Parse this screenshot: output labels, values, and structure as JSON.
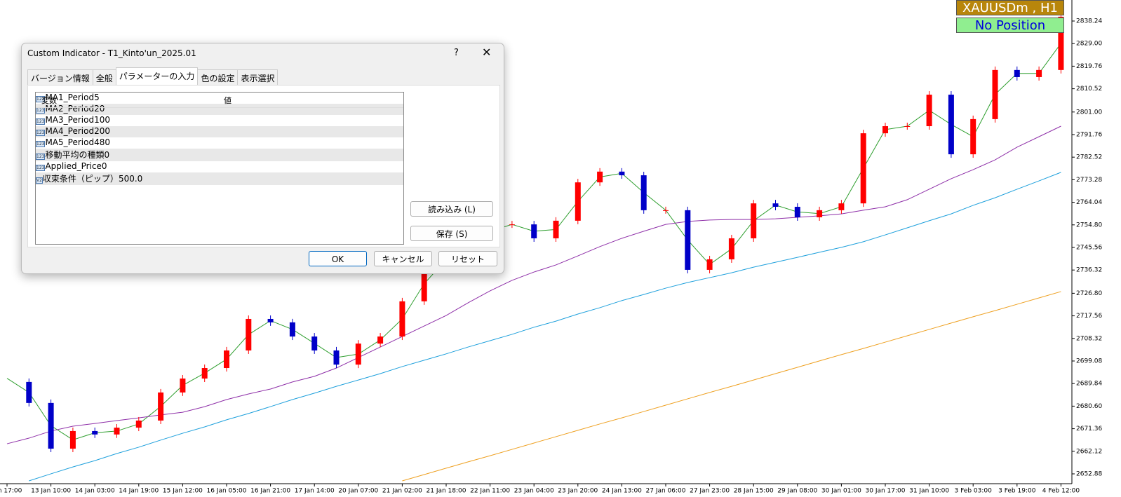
{
  "chart_data": {
    "type": "candlestick",
    "categories": [
      "Jan 17:00",
      null,
      "13 Jan 10:00",
      null,
      "14 Jan 03:00",
      null,
      "14 Jan 19:00",
      null,
      "15 Jan 12:00",
      null,
      "16 Jan 05:00",
      null,
      "16 Jan 21:00",
      null,
      "17 Jan 14:00",
      null,
      "20 Jan 07:00",
      null,
      "21 Jan 02:00",
      null,
      "21 Jan 18:00",
      null,
      "22 Jan 11:00",
      null,
      "23 Jan 04:00",
      null,
      "23 Jan 20:00",
      null,
      "24 Jan 13:00",
      null,
      "27 Jan 06:00",
      null,
      "27 Jan 23:00",
      null,
      "28 Jan 15:00",
      null,
      "29 Jan 08:00",
      null,
      "30 Jan 01:00",
      null,
      "30 Jan 17:00",
      null,
      "31 Jan 10:00",
      null,
      "3 Feb 03:00",
      null,
      "3 Feb 19:00",
      null,
      "4 Feb 12:00"
    ],
    "series": [
      {
        "kind": "candle",
        "up_color": "#ff0000",
        "down_color": "#0000c8",
        "values": [
          2690.5,
          2681.9,
          2663.2,
          2670.4,
          2669.0,
          2671.8,
          2674.7,
          2686.2,
          2691.9,
          2696.2,
          2703.4,
          2716.3,
          2714.9,
          2709.1,
          2703.4,
          2697.6,
          2706.2,
          2709.1,
          2723.5,
          2737.8,
          2743.6,
          2749.3,
          2755.0,
          2755.0,
          2749.3,
          2756.5,
          2772.2,
          2776.6,
          2775.1,
          2760.8,
          2760.8,
          2736.4,
          2740.7,
          2749.3,
          2763.6,
          2762.2,
          2757.9,
          2760.8,
          2763.6,
          2792.3,
          2795.2,
          2795.2,
          2808.1,
          2783.7,
          2798.1,
          2818.2,
          2815.3,
          2818.2,
          2840.0
        ]
      },
      {
        "kind": "line",
        "color": "#2e9e2e",
        "values": [
          2692.0,
          2686.2,
          2672.6,
          2666.8,
          2669.7,
          2670.4,
          2673.3,
          2680.5,
          2689.1,
          2694.1,
          2699.8,
          2709.9,
          2715.6,
          2712.0,
          2706.3,
          2700.5,
          2701.9,
          2707.7,
          2716.3,
          2730.7,
          2740.7,
          2746.5,
          2752.2,
          2755.0,
          2752.2,
          2752.9,
          2764.4,
          2774.4,
          2775.9,
          2768.0,
          2760.8,
          2748.6,
          2738.6,
          2745.0,
          2756.5,
          2762.9,
          2760.1,
          2759.4,
          2762.2,
          2778.0,
          2793.8,
          2795.2,
          2801.7,
          2795.9,
          2790.9,
          2808.2,
          2816.8,
          2816.8,
          2829.1
        ]
      },
      {
        "kind": "line",
        "color": "#8e2fa8",
        "values": [
          2665.2,
          2667.5,
          2670.4,
          2672.4,
          2673.5,
          2674.7,
          2675.8,
          2677.0,
          2678.1,
          2680.4,
          2683.3,
          2685.6,
          2687.6,
          2690.5,
          2692.8,
          2696.2,
          2700.5,
          2704.8,
          2709.1,
          2713.4,
          2717.7,
          2722.9,
          2727.8,
          2732.1,
          2735.5,
          2738.4,
          2742.1,
          2745.9,
          2749.3,
          2752.2,
          2755.0,
          2756.2,
          2756.8,
          2757.0,
          2757.0,
          2757.3,
          2757.9,
          2758.5,
          2759.3,
          2760.8,
          2762.2,
          2765.1,
          2769.4,
          2773.7,
          2777.4,
          2781.4,
          2786.6,
          2790.9,
          2795.2
        ]
      },
      {
        "kind": "line",
        "color": "#1ea0dc",
        "values": [
          null,
          2650.0,
          2652.9,
          2655.7,
          2658.3,
          2661.2,
          2663.8,
          2666.7,
          2669.5,
          2672.1,
          2675.0,
          2677.6,
          2680.4,
          2683.3,
          2685.9,
          2688.7,
          2691.3,
          2693.9,
          2696.8,
          2699.4,
          2702.0,
          2704.8,
          2707.4,
          2710.0,
          2712.9,
          2715.4,
          2718.3,
          2720.9,
          2723.8,
          2726.3,
          2728.9,
          2731.2,
          2733.2,
          2735.2,
          2737.5,
          2739.5,
          2741.5,
          2743.6,
          2745.6,
          2747.9,
          2750.7,
          2753.6,
          2756.5,
          2759.3,
          2762.8,
          2765.9,
          2769.4,
          2772.8,
          2776.3
        ]
      },
      {
        "kind": "line",
        "color": "#eea020",
        "values": [
          null,
          null,
          null,
          null,
          null,
          null,
          null,
          null,
          null,
          null,
          null,
          null,
          null,
          null,
          null,
          null,
          null,
          null,
          2650.0,
          2652.6,
          2655.2,
          2657.8,
          2660.3,
          2662.9,
          2665.5,
          2668.1,
          2670.7,
          2673.3,
          2675.8,
          2678.4,
          2681.0,
          2683.6,
          2686.2,
          2688.7,
          2691.3,
          2693.9,
          2696.5,
          2699.1,
          2701.7,
          2704.2,
          2706.8,
          2709.4,
          2712.0,
          2714.6,
          2717.2,
          2719.7,
          2722.3,
          2724.9,
          2727.5
        ]
      }
    ],
    "ylim": [
      2648.86,
      2846.85
    ],
    "yticks": [
      2838.24,
      {
        "value": 2829,
        "label": "2829.00"
      },
      2819.76,
      2810.52,
      {
        "value": 2801,
        "label": "2801.00"
      },
      2791.76,
      2782.52,
      2773.28,
      2764.04,
      {
        "value": 2754.8,
        "label": "2754.80"
      },
      2745.56,
      2736.32,
      {
        "value": 2726.8,
        "label": "2726.80"
      },
      2717.56,
      2708.32,
      2699.08,
      2689.84,
      {
        "value": 2680.6,
        "label": "2680.60"
      },
      2671.36,
      2662.12,
      2652.88
    ]
  },
  "overlay": {
    "symbol": "XAUUSDm , H1",
    "status": "No Position"
  },
  "dialog": {
    "title": "Custom Indicator - T1_Kinto'un_2025.01",
    "help": "?",
    "tabs": [
      "バージョン情報",
      "全般",
      "パラメーターの入力",
      "色の設定",
      "表示選択"
    ],
    "table": {
      "header": [
        "変数",
        "値"
      ],
      "rows": [
        [
          "123",
          "MA1_Period",
          "5"
        ],
        [
          "123",
          "MA2_Period",
          "20"
        ],
        [
          "123",
          "MA3_Period",
          "100"
        ],
        [
          "123",
          "MA4_Period",
          "200"
        ],
        [
          "123",
          "MA5_Period",
          "480"
        ],
        [
          "123",
          "移動平均の種類",
          "0"
        ],
        [
          "123",
          "Applied_Price",
          "0"
        ],
        [
          "V2",
          "収束条件（ピップ）",
          "500.0"
        ]
      ]
    },
    "buttons": {
      "load": "読み込み (L)",
      "save": "保存 (S)",
      "ok": "OK",
      "cancel": "キャンセル",
      "reset": "リセット"
    }
  }
}
